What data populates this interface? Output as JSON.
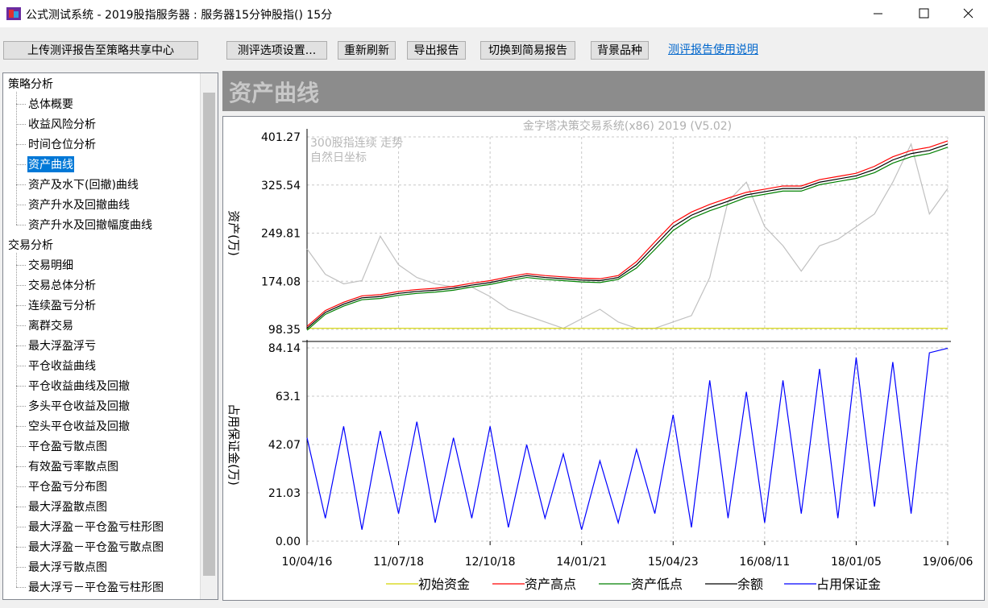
{
  "window": {
    "title": "公式测试系统 - 2019股指服务器 : 服务器15分钟股指() 15分"
  },
  "toolbar": {
    "buttons": [
      "上传测评报告至策略共享中心",
      "测评选项设置...",
      "重新刷新",
      "导出报告",
      "切换到简易报告",
      "背景品种"
    ],
    "link": "测评报告使用说明"
  },
  "sidebar": {
    "groups": [
      {
        "label": "策略分析",
        "items": [
          "总体概要",
          "收益风险分析",
          "时间仓位分析",
          "资产曲线",
          "资产及水下(回撤)曲线",
          "资产升水及回撤曲线",
          "资产升水及回撤幅度曲线"
        ]
      },
      {
        "label": "交易分析",
        "items": [
          "交易明细",
          "交易总体分析",
          "连续盈亏分析",
          "离群交易",
          "最大浮盈浮亏",
          "平仓收益曲线",
          "平仓收益曲线及回撤",
          "多头平仓收益及回撤",
          "空头平仓收益及回撤",
          "平仓盈亏散点图",
          "有效盈亏率散点图",
          "平仓盈亏分布图",
          "最大浮盈散点图",
          "最大浮盈－平仓盈亏柱形图",
          "最大浮盈－平仓盈亏散点图",
          "最大浮亏散点图",
          "最大浮亏－平仓盈亏柱形图"
        ]
      }
    ]
  },
  "panel_title": "资产曲线",
  "chart_data": [
    {
      "type": "line",
      "title": "金字塔决策交易系统(x86) 2019 (V5.02)",
      "y_label": "资产(万)",
      "annotations": [
        "300股指连续 走势",
        "自然日坐标"
      ],
      "benchmark": {
        "color": "#c0c0c0",
        "values": [
          225,
          185,
          170,
          175,
          245,
          200,
          180,
          170,
          165,
          165,
          150,
          130,
          120,
          110,
          100,
          115,
          130,
          110,
          100,
          100,
          110,
          120,
          180,
          300,
          330,
          260,
          230,
          190,
          230,
          240,
          260,
          280,
          330,
          390,
          280,
          320
        ]
      },
      "series": [
        {
          "name": "初始资金",
          "color": "#d4d400",
          "values": [
            100,
            100,
            100,
            100,
            100,
            100,
            100,
            100,
            100,
            100,
            100,
            100,
            100,
            100,
            100,
            100,
            100,
            100,
            100,
            100,
            100,
            100,
            100,
            100,
            100,
            100,
            100,
            100,
            100,
            100,
            100,
            100,
            100,
            100,
            100,
            100
          ]
        },
        {
          "name": "资产高点",
          "color": "#ff0000",
          "values": [
            103,
            128,
            141,
            151,
            153,
            158,
            161,
            163,
            166,
            171,
            175,
            181,
            186,
            183,
            181,
            179,
            178,
            183,
            205,
            236,
            266,
            283,
            295,
            305,
            314,
            319,
            324,
            324,
            334,
            339,
            344,
            355,
            370,
            380,
            385,
            395
          ]
        },
        {
          "name": "资产低点",
          "color": "#008000",
          "values": [
            97,
            122,
            135,
            145,
            147,
            152,
            155,
            157,
            160,
            165,
            169,
            175,
            180,
            177,
            175,
            173,
            172,
            177,
            195,
            224,
            254,
            273,
            285,
            295,
            306,
            311,
            316,
            316,
            326,
            331,
            336,
            345,
            360,
            370,
            375,
            385
          ]
        },
        {
          "name": "余额",
          "color": "#000000",
          "values": [
            100,
            125,
            138,
            148,
            150,
            155,
            158,
            160,
            163,
            168,
            172,
            178,
            183,
            180,
            178,
            176,
            175,
            180,
            200,
            230,
            260,
            278,
            290,
            300,
            310,
            315,
            320,
            320,
            330,
            335,
            340,
            350,
            365,
            375,
            380,
            390
          ]
        }
      ],
      "ylim": [
        98.35,
        401.27
      ],
      "yticks": [
        98.35,
        174.08,
        249.81,
        325.54,
        401.27
      ],
      "grid": true
    },
    {
      "type": "line",
      "y_label": "占用保证金(万)",
      "categories": [
        "10/04/16",
        null,
        null,
        null,
        null,
        "11/07/18",
        null,
        null,
        null,
        null,
        "12/10/18",
        null,
        null,
        null,
        null,
        "14/01/21",
        null,
        null,
        null,
        null,
        "15/04/23",
        null,
        null,
        null,
        null,
        "16/08/11",
        null,
        null,
        null,
        null,
        "18/01/05",
        null,
        null,
        null,
        null,
        "19/06/06"
      ],
      "series": [
        {
          "name": "占用保证金",
          "color": "#0000ff",
          "values": [
            45,
            10,
            50,
            5,
            48,
            12,
            52,
            8,
            45,
            10,
            50,
            6,
            42,
            10,
            38,
            5,
            35,
            8,
            40,
            12,
            55,
            6,
            70,
            10,
            65,
            8,
            70,
            12,
            75,
            10,
            80,
            15,
            78,
            12,
            82,
            84
          ]
        }
      ],
      "ylim": [
        0,
        84.14
      ],
      "yticks": [
        {
          "value": 0,
          "label": "0.00"
        },
        21.03,
        42.07,
        63.1,
        84.14
      ],
      "grid": true
    }
  ]
}
